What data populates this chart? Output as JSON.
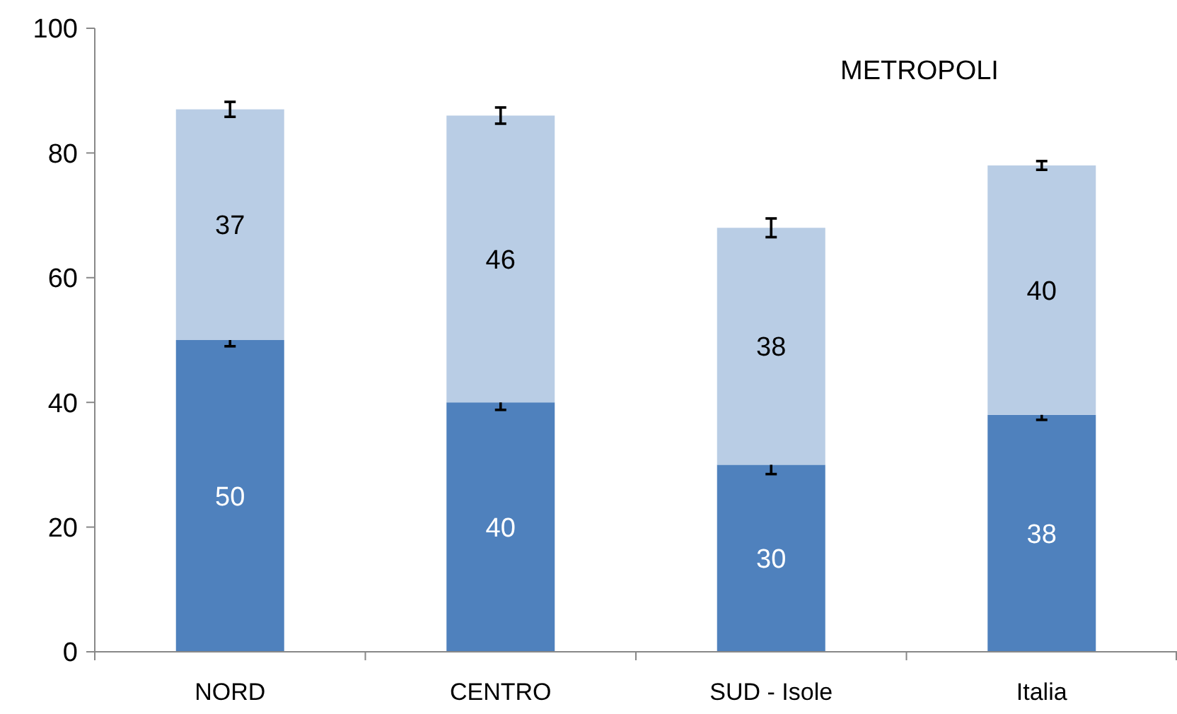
{
  "chart_data": {
    "type": "bar",
    "title": "METROPOLI",
    "categories": [
      "NORD",
      "CENTRO",
      "SUD - Isole",
      "Italia"
    ],
    "stacked": true,
    "data_labels": true,
    "grid": false,
    "ylim": [
      0,
      100
    ],
    "yticks": [
      0,
      20,
      40,
      60,
      80,
      100
    ],
    "series": [
      {
        "color": "#4f81bd",
        "values": [
          50,
          40,
          30,
          38
        ],
        "errors": [
          1,
          1.2,
          1.5,
          0.8
        ]
      },
      {
        "color": "#b9cde5",
        "values": [
          37,
          46,
          38,
          40
        ],
        "errors": [
          1.2,
          1.3,
          1.5,
          0.7
        ]
      }
    ]
  }
}
